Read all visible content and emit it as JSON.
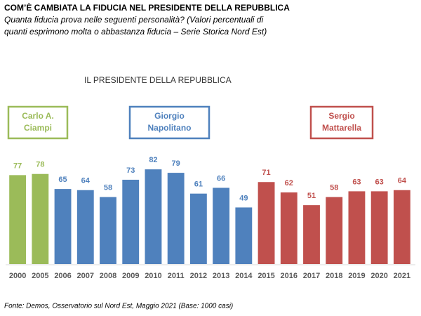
{
  "chart_data": {
    "type": "bar",
    "heading": "COM’È CAMBIATA LA FIDUCIA NEL PRESIDENTE DELLA REPUBBLICA",
    "subtitle": [
      "Quanta fiducia prova nelle seguenti personalità? (Valori percentuali di",
      "quanti esprimono molta o abbastanza fiducia – Serie Storica Nord Est)"
    ],
    "title": "IL PRESIDENTE DELLA REPUBBLICA",
    "source": "Fonte: Demos, Osservatorio sul Nord Est, Maggio 2021 (Base: 1000 casi)",
    "categories": [
      "2000",
      "2005",
      "2006",
      "2007",
      "2008",
      "2009",
      "2010",
      "2011",
      "2012",
      "2013",
      "2014",
      "2015",
      "2016",
      "2017",
      "2018",
      "2019",
      "2020",
      "2021"
    ],
    "values": [
      77,
      78,
      65,
      64,
      58,
      73,
      82,
      79,
      61,
      66,
      49,
      71,
      62,
      51,
      58,
      63,
      63,
      64
    ],
    "colors": [
      "#9bbb59",
      "#9bbb59",
      "#4f81bd",
      "#4f81bd",
      "#4f81bd",
      "#4f81bd",
      "#4f81bd",
      "#4f81bd",
      "#4f81bd",
      "#4f81bd",
      "#4f81bd",
      "#c0504d",
      "#c0504d",
      "#c0504d",
      "#c0504d",
      "#c0504d",
      "#c0504d",
      "#c0504d"
    ],
    "ylim": [
      0,
      90
    ],
    "annotations": [
      {
        "label": [
          "Carlo A.",
          "Ciampi"
        ],
        "color": "#9bbb59"
      },
      {
        "label": [
          "Giorgio",
          "Napolitano"
        ],
        "color": "#4f81bd"
      },
      {
        "label": [
          "Sergio",
          "Mattarella"
        ],
        "color": "#c0504d"
      }
    ]
  }
}
